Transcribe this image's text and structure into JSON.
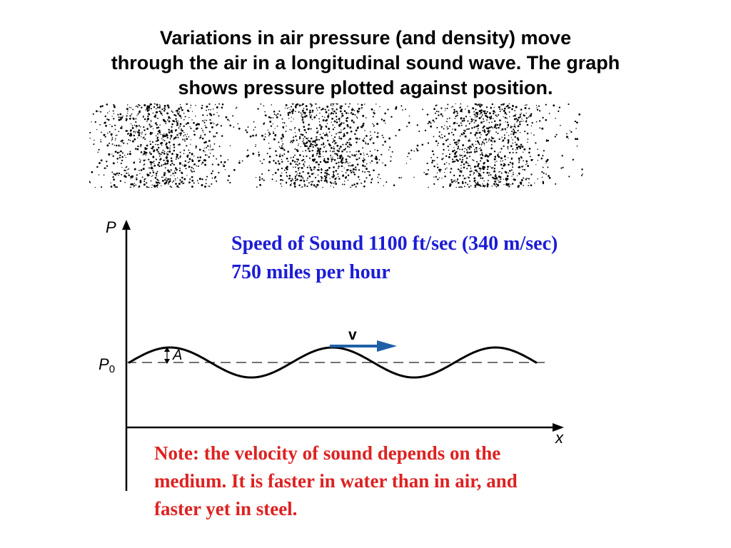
{
  "title": {
    "lines": [
      "Variations in air pressure (and density) move",
      "through the air in a longitudinal sound wave. The graph",
      "shows pressure plotted against position."
    ]
  },
  "graph": {
    "y_axis_label": "P",
    "x_axis_label": "x",
    "baseline_label": "P",
    "baseline_subscript": "0",
    "amplitude_label": "A",
    "velocity_label": "v",
    "arrow_color": "#1f5fa8"
  },
  "speed_note": {
    "color": "#1c1cd6",
    "lines": [
      "Speed of Sound 1100 ft/sec (340 m/sec)",
      "750 miles per hour"
    ]
  },
  "medium_note": {
    "color": "#dd2222",
    "lines": [
      "Note: the velocity of sound depends on the",
      "medium. It is faster in water than in air, and",
      "faster yet in steel."
    ]
  }
}
